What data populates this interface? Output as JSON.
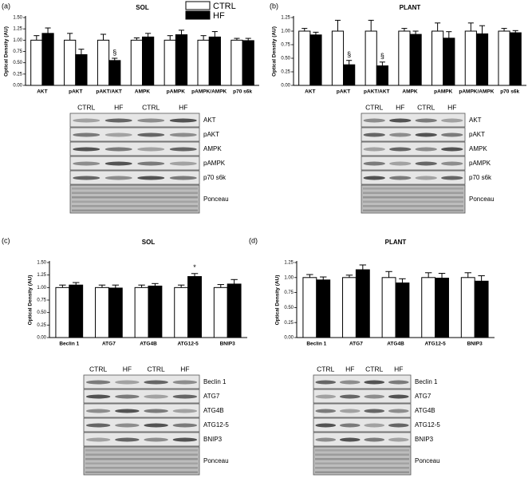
{
  "chart_data": [
    {
      "type": "bar",
      "panel": "(a)",
      "title": "SOL",
      "ylabel": "Optical Density (AU)",
      "categories": [
        "AKT",
        "pAKT",
        "pAKT/AKT",
        "AMPK",
        "pAMPK",
        "pAMPK/AMPK",
        "p70 s6k"
      ],
      "ylim": [
        0,
        1.5
      ],
      "yticks": [
        {
          "value": 0,
          "label": "0.00"
        },
        {
          "value": 0.25,
          "label": "0.25"
        },
        {
          "value": 0.5,
          "label": "0.50"
        },
        {
          "value": 0.75,
          "label": "0.75"
        },
        {
          "value": 1,
          "label": "1.00"
        },
        {
          "value": 1.25,
          "label": "1.25"
        },
        {
          "value": 1.5,
          "label": "1.50"
        }
      ],
      "series": [
        {
          "name": "CTRL",
          "color": "#ffffff",
          "values": [
            1.0,
            1.0,
            1.0,
            1.0,
            1.0,
            1.0,
            1.0
          ],
          "errors": [
            0.1,
            0.15,
            0.13,
            0.05,
            0.1,
            0.1,
            0.04
          ]
        },
        {
          "name": "HF",
          "color": "#000000",
          "values": [
            1.15,
            0.68,
            0.55,
            1.07,
            1.12,
            1.07,
            0.99
          ],
          "errors": [
            0.12,
            0.12,
            0.05,
            0.08,
            0.1,
            0.12,
            0.05
          ]
        }
      ],
      "legend": "upper right",
      "annotations": [
        {
          "text": "§",
          "category": 2,
          "series": 1
        }
      ],
      "blot": {
        "lanes": [
          "CTRL",
          "HF",
          "CTRL",
          "HF"
        ],
        "rows": [
          "AKT",
          "pAKT",
          "AMPK",
          "pAMPK",
          "p70 s6k",
          "Ponceau"
        ]
      }
    },
    {
      "type": "bar",
      "panel": "(b)",
      "title": "PLANT",
      "ylabel": "Optical Density (AU)",
      "categories": [
        "AKT",
        "pAKT",
        "pAKT/AKT",
        "AMPK",
        "pAMPK",
        "pAMPK/AMPK",
        "p70 s6k"
      ],
      "ylim": [
        0,
        1.25
      ],
      "yticks": [
        {
          "value": 0,
          "label": "0.00"
        },
        {
          "value": 0.25,
          "label": "0.25"
        },
        {
          "value": 0.5,
          "label": "0.50"
        },
        {
          "value": 0.75,
          "label": "0.75"
        },
        {
          "value": 1,
          "label": "1.00"
        },
        {
          "value": 1.25,
          "label": "1.25"
        }
      ],
      "series": [
        {
          "color": "#ffffff",
          "values": [
            1.0,
            1.0,
            1.0,
            1.0,
            1.0,
            1.0,
            1.0
          ],
          "errors": [
            0.05,
            0.2,
            0.2,
            0.05,
            0.15,
            0.15,
            0.05
          ]
        },
        {
          "color": "#000000",
          "values": [
            0.93,
            0.38,
            0.36,
            0.94,
            0.87,
            0.95,
            0.97
          ],
          "errors": [
            0.05,
            0.08,
            0.07,
            0.06,
            0.12,
            0.15,
            0.04
          ]
        }
      ],
      "annotations": [
        {
          "text": "§",
          "category": 1,
          "series": 1
        },
        {
          "text": "§",
          "category": 2,
          "series": 1
        }
      ],
      "blot": {
        "lanes": [
          "CTRL",
          "HF",
          "CTRL",
          "HF"
        ],
        "rows": [
          "AKT",
          "pAKT",
          "AMPK",
          "pAMPK",
          "p70 s6k",
          "Ponceau"
        ]
      }
    },
    {
      "type": "bar",
      "panel": "(c)",
      "title": "SOL",
      "ylabel": "Optical Density (AU)",
      "categories": [
        "Beclin 1",
        "ATG7",
        "ATG4B",
        "ATG12-5",
        "BNIP3"
      ],
      "ylim": [
        0,
        1.5
      ],
      "yticks": [
        {
          "value": 0,
          "label": "0.00"
        },
        {
          "value": 0.25,
          "label": "0.25"
        },
        {
          "value": 0.5,
          "label": "0.50"
        },
        {
          "value": 0.75,
          "label": "0.75"
        },
        {
          "value": 1,
          "label": "1.00"
        },
        {
          "value": 1.25,
          "label": "1.25"
        },
        {
          "value": 1.5,
          "label": "1.50"
        }
      ],
      "series": [
        {
          "color": "#ffffff",
          "values": [
            1.0,
            1.0,
            1.0,
            1.0,
            1.0
          ],
          "errors": [
            0.05,
            0.05,
            0.05,
            0.05,
            0.06
          ]
        },
        {
          "color": "#000000",
          "values": [
            1.05,
            0.99,
            1.03,
            1.22,
            1.07
          ],
          "errors": [
            0.05,
            0.06,
            0.05,
            0.06,
            0.09
          ]
        }
      ],
      "annotations": [
        {
          "text": "*",
          "category": 3,
          "series": 1
        }
      ],
      "blot": {
        "lanes": [
          "CTRL",
          "HF",
          "CTRL",
          "HF"
        ],
        "rows": [
          "Beclin 1",
          "ATG7",
          "ATG4B",
          "ATG12-5",
          "BNIP3",
          "Ponceau"
        ]
      }
    },
    {
      "type": "bar",
      "panel": "(d)",
      "title": "PLANT",
      "ylabel": "Optical Density (AU)",
      "categories": [
        "Beclin 1",
        "ATG7",
        "ATG4B",
        "ATG12-5",
        "BNIP3"
      ],
      "ylim": [
        0,
        1.25
      ],
      "yticks": [
        {
          "value": 0,
          "label": "0.00"
        },
        {
          "value": 0.25,
          "label": "0.25"
        },
        {
          "value": 0.5,
          "label": "0.50"
        },
        {
          "value": 0.75,
          "label": "0.75"
        },
        {
          "value": 1,
          "label": "1.00"
        },
        {
          "value": 1.25,
          "label": "1.25"
        }
      ],
      "series": [
        {
          "color": "#ffffff",
          "values": [
            1.0,
            1.0,
            1.0,
            1.0,
            1.0
          ],
          "errors": [
            0.05,
            0.04,
            0.1,
            0.08,
            0.08
          ]
        },
        {
          "color": "#000000",
          "values": [
            0.96,
            1.13,
            0.91,
            0.99,
            0.94
          ],
          "errors": [
            0.05,
            0.08,
            0.07,
            0.08,
            0.09
          ]
        }
      ],
      "blot": {
        "lanes": [
          "CTRL",
          "HF",
          "CTRL",
          "HF"
        ],
        "rows": [
          "Beclin 1",
          "ATG7",
          "ATG4B",
          "ATG12-5",
          "BNIP3",
          "Ponceau"
        ]
      }
    }
  ]
}
